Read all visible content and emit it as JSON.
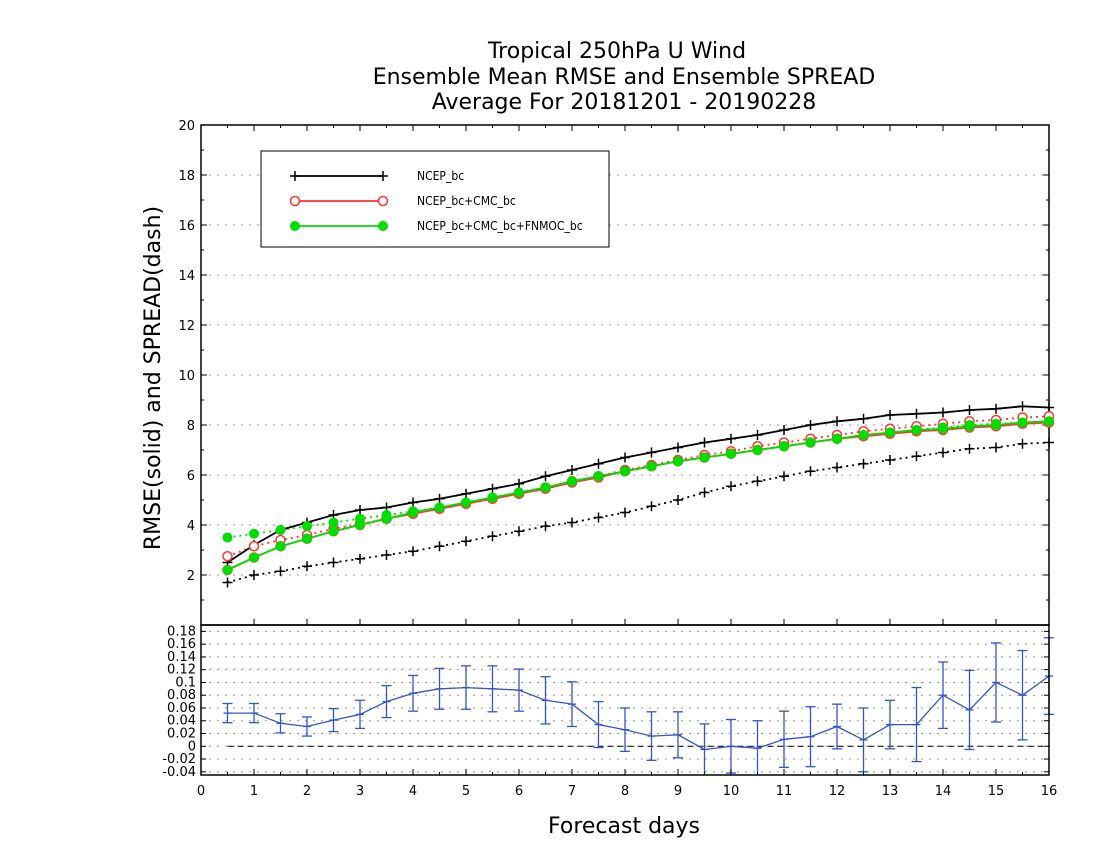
{
  "chart_data": [
    {
      "type": "line",
      "title_lines": [
        "Tropical 250hPa U Wind",
        "Ensemble Mean RMSE and Ensemble SPREAD",
        "Average For 20181201 - 20190228"
      ],
      "ylabel": "RMSE(solid)  and  SPREAD(dash)",
      "xlim": [
        0,
        16
      ],
      "ylim": [
        0,
        20
      ],
      "yticks": [
        2,
        4,
        6,
        8,
        10,
        12,
        14,
        16,
        18,
        20
      ],
      "grid": true,
      "legend_position": "top-left",
      "x": [
        0.5,
        1,
        1.5,
        2,
        2.5,
        3,
        3.5,
        4,
        4.5,
        5,
        5.5,
        6,
        6.5,
        7,
        7.5,
        8,
        8.5,
        9,
        9.5,
        10,
        10.5,
        11,
        11.5,
        12,
        12.5,
        13,
        13.5,
        14,
        14.5,
        15,
        15.5,
        16
      ],
      "series": [
        {
          "name": "NCEP_bc",
          "color": "#000000",
          "marker": "plus",
          "rmse": [
            2.5,
            3.2,
            3.8,
            4.1,
            4.4,
            4.6,
            4.7,
            4.9,
            5.05,
            5.25,
            5.45,
            5.65,
            5.95,
            6.2,
            6.45,
            6.7,
            6.9,
            7.1,
            7.3,
            7.45,
            7.6,
            7.8,
            8.0,
            8.15,
            8.25,
            8.4,
            8.45,
            8.5,
            8.6,
            8.65,
            8.75,
            8.7
          ],
          "spread": [
            1.7,
            2.0,
            2.15,
            2.35,
            2.5,
            2.65,
            2.8,
            2.95,
            3.15,
            3.35,
            3.55,
            3.75,
            3.95,
            4.1,
            4.3,
            4.5,
            4.75,
            5.0,
            5.3,
            5.55,
            5.75,
            5.95,
            6.15,
            6.3,
            6.45,
            6.6,
            6.75,
            6.9,
            7.05,
            7.1,
            7.25,
            7.3
          ]
        },
        {
          "name": "NCEP_bc+CMC_bc",
          "color": "#ff3333",
          "marker": "open-circle",
          "rmse": [
            2.2,
            2.7,
            3.15,
            3.45,
            3.75,
            4.0,
            4.25,
            4.45,
            4.65,
            4.85,
            5.05,
            5.25,
            5.45,
            5.7,
            5.9,
            6.15,
            6.35,
            6.55,
            6.7,
            6.85,
            7.0,
            7.15,
            7.3,
            7.45,
            7.55,
            7.65,
            7.75,
            7.8,
            7.9,
            7.95,
            8.05,
            8.1
          ],
          "spread": [
            2.75,
            3.15,
            3.4,
            3.6,
            3.85,
            4.05,
            4.25,
            4.45,
            4.65,
            4.85,
            5.05,
            5.25,
            5.5,
            5.75,
            5.95,
            6.2,
            6.4,
            6.6,
            6.8,
            6.95,
            7.15,
            7.3,
            7.45,
            7.6,
            7.75,
            7.85,
            7.95,
            8.05,
            8.15,
            8.2,
            8.3,
            8.35
          ]
        },
        {
          "name": "NCEP_bc+CMC_bc+FNMOC_bc",
          "color": "#00dd00",
          "marker": "filled-circle",
          "rmse": [
            2.2,
            2.7,
            3.15,
            3.45,
            3.75,
            4.0,
            4.25,
            4.5,
            4.7,
            4.9,
            5.1,
            5.3,
            5.5,
            5.75,
            5.95,
            6.15,
            6.35,
            6.55,
            6.7,
            6.85,
            7.0,
            7.15,
            7.3,
            7.45,
            7.6,
            7.7,
            7.8,
            7.85,
            7.95,
            8.0,
            8.1,
            8.15
          ],
          "spread": [
            3.5,
            3.65,
            3.8,
            3.95,
            4.1,
            4.25,
            4.4,
            4.55,
            4.7,
            4.9,
            5.1,
            5.3,
            5.5,
            5.75,
            5.95,
            6.15,
            6.35,
            6.55,
            6.7,
            6.85,
            7.0,
            7.15,
            7.3,
            7.45,
            7.6,
            7.7,
            7.8,
            7.9,
            8.0,
            8.05,
            8.1,
            8.15
          ]
        }
      ]
    },
    {
      "type": "line",
      "xlabel": "Forecast days",
      "xlim": [
        0,
        16
      ],
      "xticks": [
        0,
        1,
        2,
        3,
        4,
        5,
        6,
        7,
        8,
        9,
        10,
        11,
        12,
        13,
        14,
        15,
        16
      ],
      "ylim": [
        -0.045,
        0.19
      ],
      "yticks": [
        -0.04,
        -0.02,
        0,
        0.02,
        0.04,
        0.06,
        0.08,
        0.1,
        0.12,
        0.14,
        0.16,
        0.18
      ],
      "ytick_labels": [
        "-0.04",
        "-0.02",
        "0",
        "0.02",
        "0.04",
        "0.06",
        "0.08",
        "0.1",
        "0.12",
        "0.14",
        "0.16",
        "0.18"
      ],
      "grid": true,
      "zero_line": "dashed",
      "series": [
        {
          "color": "#3355cc",
          "x": [
            0.5,
            1,
            1.5,
            2,
            2.5,
            3,
            3.5,
            4,
            4.5,
            5,
            5.5,
            6,
            6.5,
            7,
            7.5,
            8,
            8.5,
            9,
            9.5,
            10,
            10.5,
            11,
            11.5,
            12,
            12.5,
            13,
            13.5,
            14,
            14.5,
            15,
            15.5,
            16
          ],
          "values": [
            0.052,
            0.052,
            0.036,
            0.031,
            0.041,
            0.05,
            0.07,
            0.083,
            0.09,
            0.092,
            0.09,
            0.088,
            0.072,
            0.066,
            0.034,
            0.026,
            0.016,
            0.018,
            -0.005,
            0.0,
            -0.003,
            0.011,
            0.015,
            0.031,
            0.01,
            0.034,
            0.034,
            0.08,
            0.057,
            0.1,
            0.08,
            0.11
          ],
          "error": [
            0.015,
            0.015,
            0.015,
            0.015,
            0.018,
            0.022,
            0.025,
            0.028,
            0.032,
            0.034,
            0.036,
            0.033,
            0.037,
            0.035,
            0.036,
            0.034,
            0.038,
            0.036,
            0.04,
            0.042,
            0.043,
            0.044,
            0.047,
            0.035,
            0.05,
            0.038,
            0.058,
            0.052,
            0.062,
            0.062,
            0.07,
            0.06
          ]
        }
      ]
    }
  ]
}
